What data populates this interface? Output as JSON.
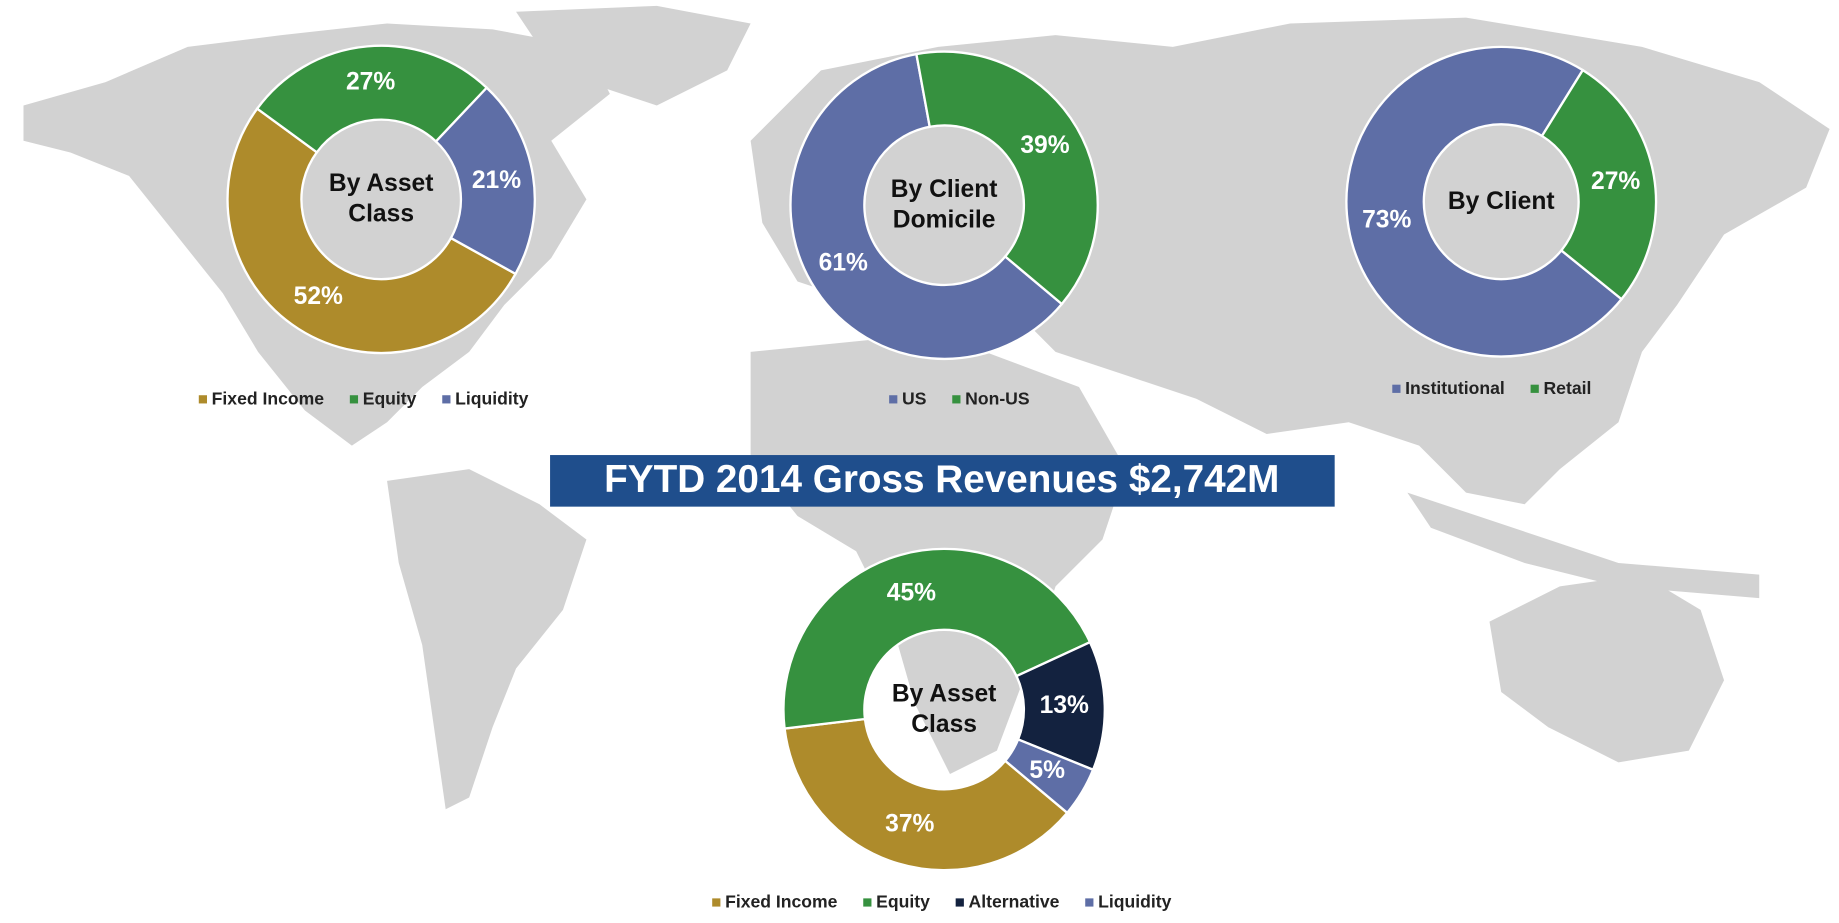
{
  "title": "FYTD 2014 Gross Revenues $2,742M",
  "chart_data": [
    {
      "type": "donut",
      "title": "By Asset Class",
      "categories": [
        "Fixed Income",
        "Equity",
        "Liquidity"
      ],
      "values": [
        52,
        27,
        21
      ],
      "value_labels": [
        "52%",
        "27%",
        "21%"
      ],
      "colors": [
        "#ae8b2b",
        "#36913f",
        "#5e6ea6"
      ]
    },
    {
      "type": "donut",
      "title": "By Client Domicile",
      "categories": [
        "US",
        "Non-US"
      ],
      "values": [
        61,
        39
      ],
      "value_labels": [
        "61%",
        "39%"
      ],
      "colors": [
        "#5e6ea6",
        "#36913f"
      ]
    },
    {
      "type": "donut",
      "title": "By Client",
      "categories": [
        "Institutional",
        "Retail"
      ],
      "values": [
        73,
        27
      ],
      "value_labels": [
        "73%",
        "27%"
      ],
      "colors": [
        "#5e6ea6",
        "#36913f"
      ]
    },
    {
      "type": "donut",
      "title": "By Asset Class",
      "categories": [
        "Fixed Income",
        "Equity",
        "Alternative",
        "Liquidity"
      ],
      "values": [
        37,
        45,
        13,
        5
      ],
      "value_labels": [
        "37%",
        "45%",
        "13%",
        "5%"
      ],
      "colors": [
        "#ae8b2b",
        "#36913f",
        "#13223f",
        "#5e6ea6"
      ]
    }
  ]
}
